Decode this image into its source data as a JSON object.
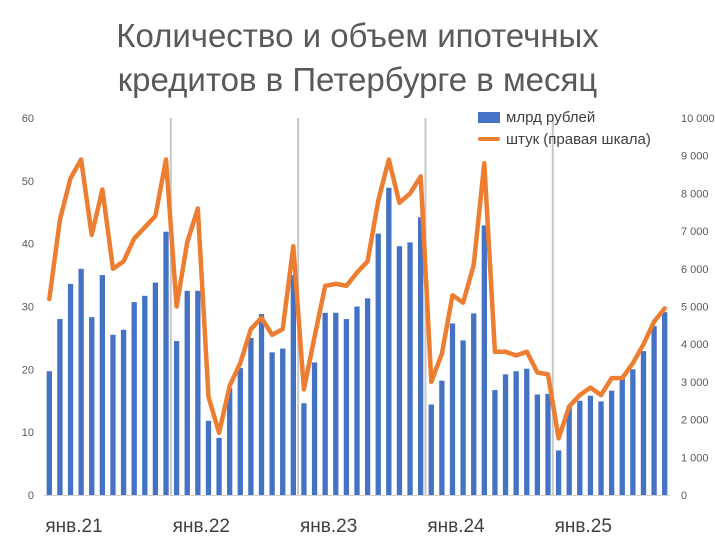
{
  "chart_data": {
    "type": "bar",
    "title": "Количество и объем ипотечных кредитов в Петербурге в месяц",
    "title_lines": [
      "Количество и объем ипотечных",
      "кредитов в Петербурге в месяц"
    ],
    "x_tick_labels": [
      "янв.21",
      "янв.22",
      "янв.23",
      "янв.24",
      "янв.25"
    ],
    "left_axis": {
      "ylim": [
        0,
        60
      ],
      "ticks": [
        "0",
        "10",
        "20",
        "30",
        "40",
        "50",
        "60"
      ]
    },
    "right_axis": {
      "ylim": [
        0,
        10000
      ],
      "ticks": [
        "0",
        "1 000",
        "2 000",
        "3 000",
        "4 000",
        "5 000",
        "6 000",
        "7 000",
        "8 000",
        "9 000",
        "10 000"
      ]
    },
    "legend_position": "top-right",
    "series": [
      {
        "name": "млрд рублей",
        "type": "bar",
        "axis": "left",
        "color": "#4472C4",
        "values": [
          19.7,
          28.0,
          33.6,
          36.0,
          28.3,
          35.0,
          25.5,
          26.3,
          30.7,
          31.7,
          33.8,
          41.9,
          24.5,
          32.5,
          32.5,
          11.8,
          9.1,
          17.0,
          20.2,
          25.0,
          28.8,
          22.7,
          23.3,
          35.0,
          14.6,
          21.1,
          29.0,
          29.0,
          28.0,
          30.0,
          31.3,
          41.6,
          48.9,
          39.6,
          40.2,
          44.2,
          14.4,
          18.2,
          27.3,
          24.6,
          28.9,
          42.9,
          16.7,
          19.2,
          19.7,
          20.1,
          16.0,
          16.1,
          7.1,
          14.2,
          15.0,
          15.8,
          14.9,
          16.6,
          18.7,
          20.0,
          22.9,
          26.9,
          29.1
        ]
      },
      {
        "name": "штук (правая шкала)",
        "type": "line",
        "axis": "right",
        "color": "#ED7D31",
        "values": [
          5200,
          7300,
          8400,
          8900,
          6900,
          8100,
          6000,
          6200,
          6800,
          7100,
          7400,
          8900,
          5000,
          6700,
          7600,
          2600,
          1650,
          2900,
          3500,
          4400,
          4700,
          4250,
          4400,
          6600,
          2800,
          4200,
          5550,
          5600,
          5550,
          5900,
          6200,
          7800,
          8900,
          7750,
          8000,
          8450,
          3000,
          3750,
          5300,
          5100,
          6100,
          8800,
          3800,
          3800,
          3700,
          3800,
          3250,
          3200,
          1500,
          2350,
          2650,
          2850,
          2650,
          3100,
          3100,
          3500,
          4000,
          4600,
          4950
        ]
      }
    ]
  }
}
